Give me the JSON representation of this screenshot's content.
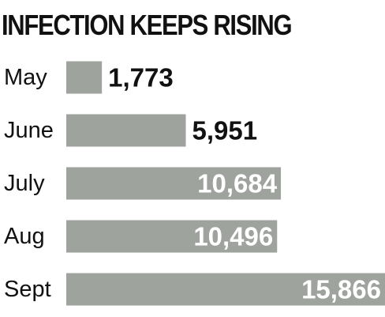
{
  "chart_data": {
    "type": "bar",
    "orientation": "horizontal",
    "title": "INFECTION KEEPS RISING",
    "categories": [
      "May",
      "June",
      "July",
      "Aug",
      "Sept"
    ],
    "values": [
      1773,
      5951,
      10684,
      10496,
      15866
    ],
    "value_labels": [
      "1,773",
      "5,951",
      "10,684",
      "10,496",
      "15,866"
    ],
    "xlabel": "",
    "ylabel": "",
    "xlim": [
      0,
      15866
    ],
    "grid": false,
    "legend": "none",
    "colors": {
      "bar": "#9ea39e",
      "label_outside": "#111111",
      "label_inside": "#ffffff"
    }
  }
}
